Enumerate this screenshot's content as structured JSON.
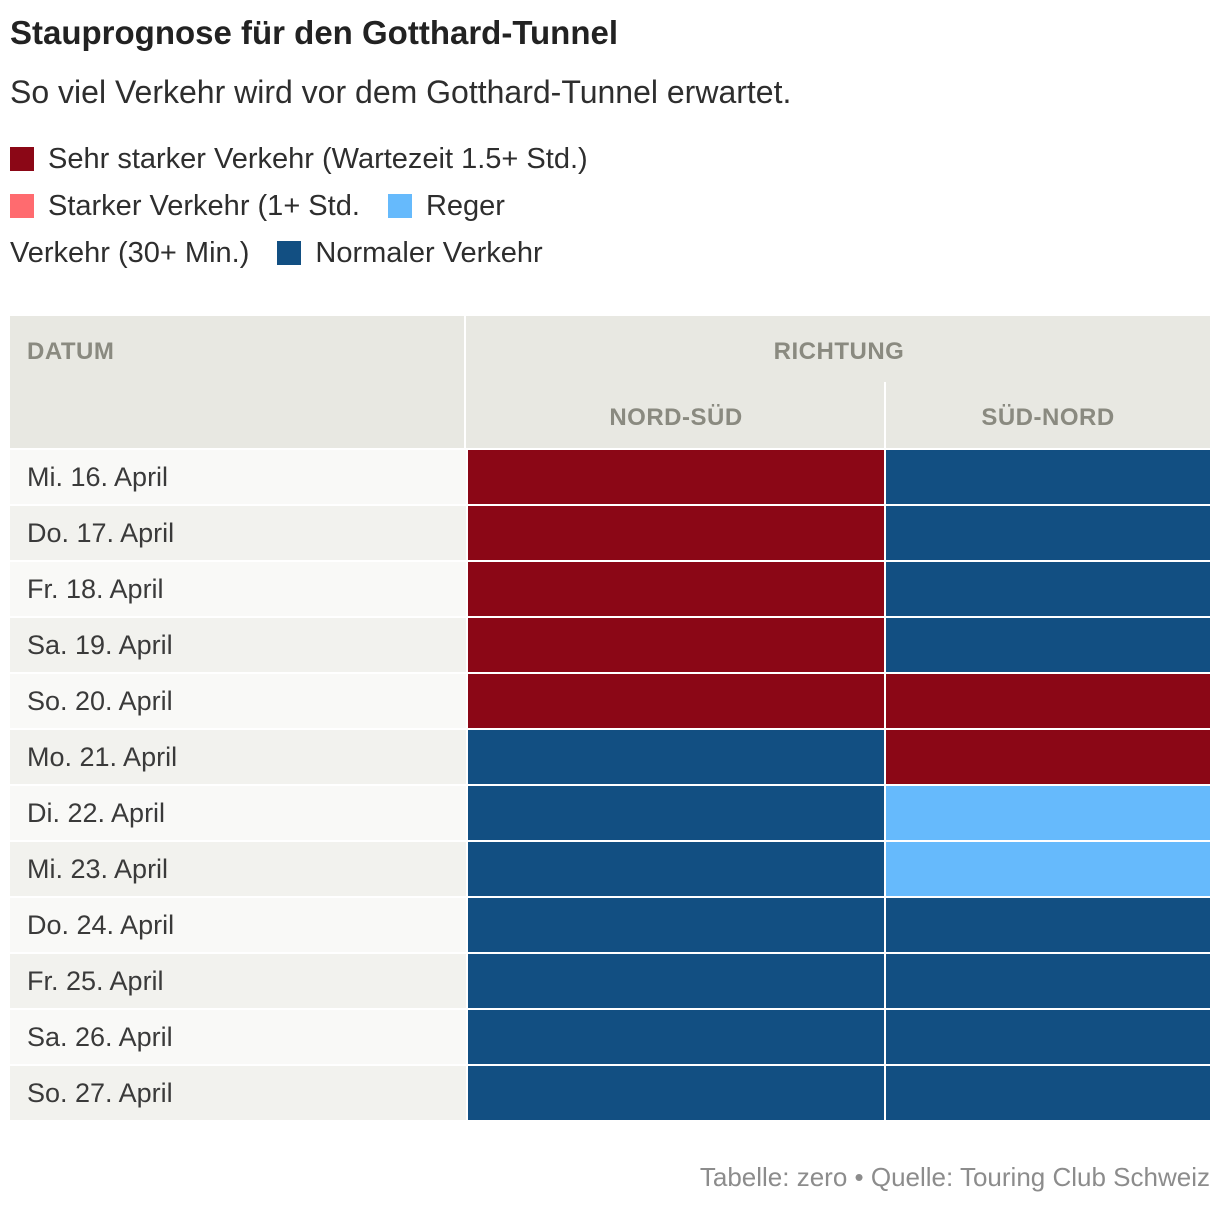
{
  "title": "Stauprognose für den Gotthard-Tunnel",
  "subtitle": "So viel Verkehr wird vor dem Gotthard-Tunnel erwartet.",
  "legend": [
    {
      "label": "Sehr starker Verkehr (Wartezeit 1.5+ Std.)",
      "color": "#8b0716"
    },
    {
      "label": "Starker Verkehr (1+ Std.",
      "color": "#ff6b6f"
    },
    {
      "label": "Reger Verkehr (30+ Min.)",
      "color": "#66bafc"
    },
    {
      "label": "Normaler Verkehr",
      "color": "#124f82"
    }
  ],
  "header": {
    "datum": "DATUM",
    "richtung": "RICHTUNG",
    "nord_sued": "NORD-SÜD",
    "sued_nord": "SÜD-NORD"
  },
  "colors": {
    "very_heavy": "#8b0716",
    "heavy": "#ff6b6f",
    "moderate": "#66bafc",
    "normal": "#124f82"
  },
  "chart_data": {
    "type": "table",
    "title": "Stauprognose für den Gotthard-Tunnel",
    "subtitle": "So viel Verkehr wird vor dem Gotthard-Tunnel erwartet.",
    "columns": [
      "DATUM",
      "NORD-SÜD",
      "SÜD-NORD"
    ],
    "category_labels": {
      "very_heavy": "Sehr starker Verkehr (Wartezeit 1.5+ Std.)",
      "heavy": "Starker Verkehr (1+ Std.",
      "moderate": "Reger Verkehr (30+ Min.)",
      "normal": "Normaler Verkehr"
    },
    "rows": [
      {
        "date": "Mi. 16. April",
        "nord_sued": "very_heavy",
        "sued_nord": "normal"
      },
      {
        "date": "Do. 17. April",
        "nord_sued": "very_heavy",
        "sued_nord": "normal"
      },
      {
        "date": "Fr. 18. April",
        "nord_sued": "very_heavy",
        "sued_nord": "normal"
      },
      {
        "date": "Sa. 19. April",
        "nord_sued": "very_heavy",
        "sued_nord": "normal"
      },
      {
        "date": "So. 20. April",
        "nord_sued": "very_heavy",
        "sued_nord": "very_heavy"
      },
      {
        "date": "Mo. 21. April",
        "nord_sued": "normal",
        "sued_nord": "very_heavy"
      },
      {
        "date": "Di. 22. April",
        "nord_sued": "normal",
        "sued_nord": "moderate"
      },
      {
        "date": "Mi. 23. April",
        "nord_sued": "normal",
        "sued_nord": "moderate"
      },
      {
        "date": "Do. 24. April",
        "nord_sued": "normal",
        "sued_nord": "normal"
      },
      {
        "date": "Fr. 25. April",
        "nord_sued": "normal",
        "sued_nord": "normal"
      },
      {
        "date": "Sa. 26. April",
        "nord_sued": "normal",
        "sued_nord": "normal"
      },
      {
        "date": "So. 27. April",
        "nord_sued": "normal",
        "sued_nord": "normal"
      }
    ]
  },
  "footer": "Tabelle: zero • Quelle: Touring Club Schweiz"
}
